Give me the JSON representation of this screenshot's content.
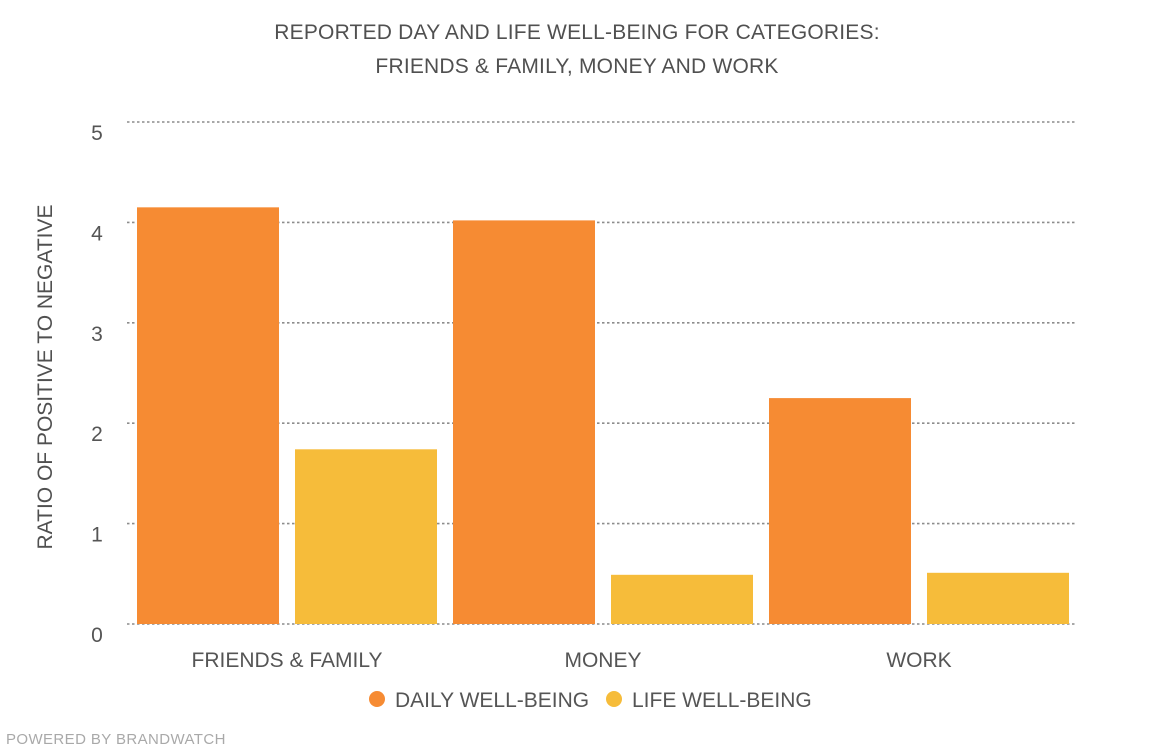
{
  "chart_data": {
    "type": "bar",
    "title_lines": [
      "REPORTED DAY AND LIFE WELL-BEING FOR CATEGORIES:",
      "FRIENDS & FAMILY, MONEY AND WORK"
    ],
    "ylabel": "RATIO OF POSITIVE TO NEGATIVE",
    "xlabel": "",
    "ylim": [
      0,
      5
    ],
    "yticks": [
      "0",
      "1",
      "2",
      "3",
      "4",
      "5"
    ],
    "grid": true,
    "legend_position": "bottom",
    "categories": [
      "FRIENDS & FAMILY",
      "MONEY",
      "WORK"
    ],
    "series": [
      {
        "name": "DAILY WELL-BEING",
        "color": "#f68b33",
        "values": [
          4.15,
          4.02,
          2.25
        ]
      },
      {
        "name": "LIFE WELL-BEING",
        "color": "#f6bc3a",
        "values": [
          1.74,
          0.49,
          0.51
        ]
      }
    ]
  },
  "footer": "POWERED BY BRANDWATCH"
}
